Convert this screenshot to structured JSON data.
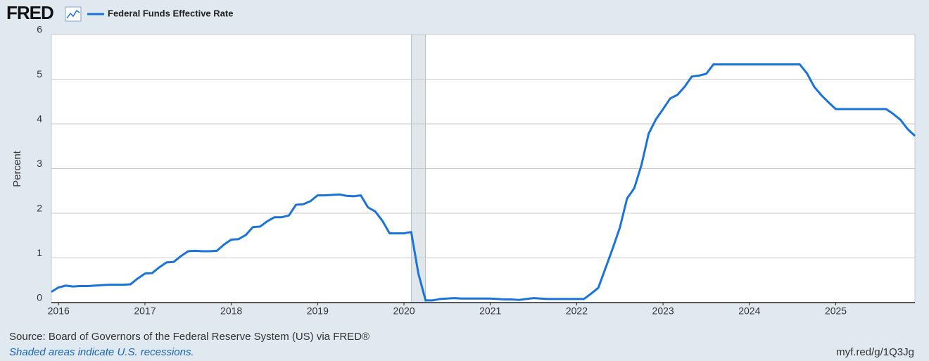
{
  "chart_data": {
    "type": "line",
    "logo": "FRED",
    "ylabel": "Percent",
    "source": "Source: Board of Governors of the Federal Reserve System (US) via FRED®",
    "note": "Shaded areas indicate U.S. recessions.",
    "url": "myf.red/g/1Q3Jg",
    "xlim": [
      "2015-12",
      "2025-12"
    ],
    "xticks": [
      "2016",
      "2017",
      "2018",
      "2019",
      "2020",
      "2021",
      "2022",
      "2023",
      "2024",
      "2025"
    ],
    "ylim": [
      0,
      6
    ],
    "yticks": [
      0,
      1,
      2,
      3,
      4,
      5,
      6
    ],
    "grid": true,
    "recessions": [
      {
        "start": "2020-02",
        "end": "2020-04"
      }
    ],
    "x": [
      "2015-12",
      "2016-01",
      "2016-02",
      "2016-03",
      "2016-04",
      "2016-05",
      "2016-06",
      "2016-07",
      "2016-08",
      "2016-09",
      "2016-10",
      "2016-11",
      "2016-12",
      "2017-01",
      "2017-02",
      "2017-03",
      "2017-04",
      "2017-05",
      "2017-06",
      "2017-07",
      "2017-08",
      "2017-09",
      "2017-10",
      "2017-11",
      "2017-12",
      "2018-01",
      "2018-02",
      "2018-03",
      "2018-04",
      "2018-05",
      "2018-06",
      "2018-07",
      "2018-08",
      "2018-09",
      "2018-10",
      "2018-11",
      "2018-12",
      "2019-01",
      "2019-02",
      "2019-03",
      "2019-04",
      "2019-05",
      "2019-06",
      "2019-07",
      "2019-08",
      "2019-09",
      "2019-10",
      "2019-11",
      "2019-12",
      "2020-01",
      "2020-02",
      "2020-03",
      "2020-04",
      "2020-05",
      "2020-06",
      "2020-07",
      "2020-08",
      "2020-09",
      "2020-10",
      "2020-11",
      "2020-12",
      "2021-01",
      "2021-02",
      "2021-03",
      "2021-04",
      "2021-05",
      "2021-06",
      "2021-07",
      "2021-08",
      "2021-09",
      "2021-10",
      "2021-11",
      "2021-12",
      "2022-01",
      "2022-02",
      "2022-03",
      "2022-04",
      "2022-05",
      "2022-06",
      "2022-07",
      "2022-08",
      "2022-09",
      "2022-10",
      "2022-11",
      "2022-12",
      "2023-01",
      "2023-02",
      "2023-03",
      "2023-04",
      "2023-05",
      "2023-06",
      "2023-07",
      "2023-08",
      "2023-09",
      "2023-10",
      "2023-11",
      "2023-12",
      "2024-01",
      "2024-02",
      "2024-03",
      "2024-04",
      "2024-05",
      "2024-06",
      "2024-07",
      "2024-08",
      "2024-09",
      "2024-10",
      "2024-11",
      "2024-12",
      "2025-01",
      "2025-02",
      "2025-03",
      "2025-04",
      "2025-05",
      "2025-06",
      "2025-07",
      "2025-08",
      "2025-09",
      "2025-10",
      "2025-11",
      "2025-12"
    ],
    "series": [
      {
        "name": "Federal Funds Effective Rate",
        "color": "#1a73d9",
        "values": [
          0.24,
          0.34,
          0.38,
          0.36,
          0.37,
          0.37,
          0.38,
          0.39,
          0.4,
          0.4,
          0.4,
          0.41,
          0.54,
          0.65,
          0.66,
          0.79,
          0.9,
          0.91,
          1.04,
          1.15,
          1.16,
          1.15,
          1.15,
          1.16,
          1.3,
          1.41,
          1.42,
          1.51,
          1.69,
          1.7,
          1.82,
          1.91,
          1.91,
          1.95,
          2.19,
          2.2,
          2.27,
          2.4,
          2.4,
          2.41,
          2.42,
          2.39,
          2.38,
          2.4,
          2.13,
          2.04,
          1.83,
          1.55,
          1.55,
          1.55,
          1.58,
          0.65,
          0.05,
          0.05,
          0.08,
          0.09,
          0.1,
          0.09,
          0.09,
          0.09,
          0.09,
          0.09,
          0.08,
          0.07,
          0.07,
          0.06,
          0.08,
          0.1,
          0.09,
          0.08,
          0.08,
          0.08,
          0.08,
          0.08,
          0.08,
          0.2,
          0.33,
          0.77,
          1.21,
          1.68,
          2.33,
          2.56,
          3.08,
          3.78,
          4.1,
          4.33,
          4.57,
          4.65,
          4.83,
          5.06,
          5.08,
          5.12,
          5.33,
          5.33,
          5.33,
          5.33,
          5.33,
          5.33,
          5.33,
          5.33,
          5.33,
          5.33,
          5.33,
          5.33,
          5.33,
          5.13,
          4.83,
          4.64,
          4.48,
          4.33,
          4.33,
          4.33,
          4.33,
          4.33,
          4.33,
          4.33,
          4.33,
          4.22,
          4.09,
          3.88,
          3.73
        ]
      }
    ]
  }
}
